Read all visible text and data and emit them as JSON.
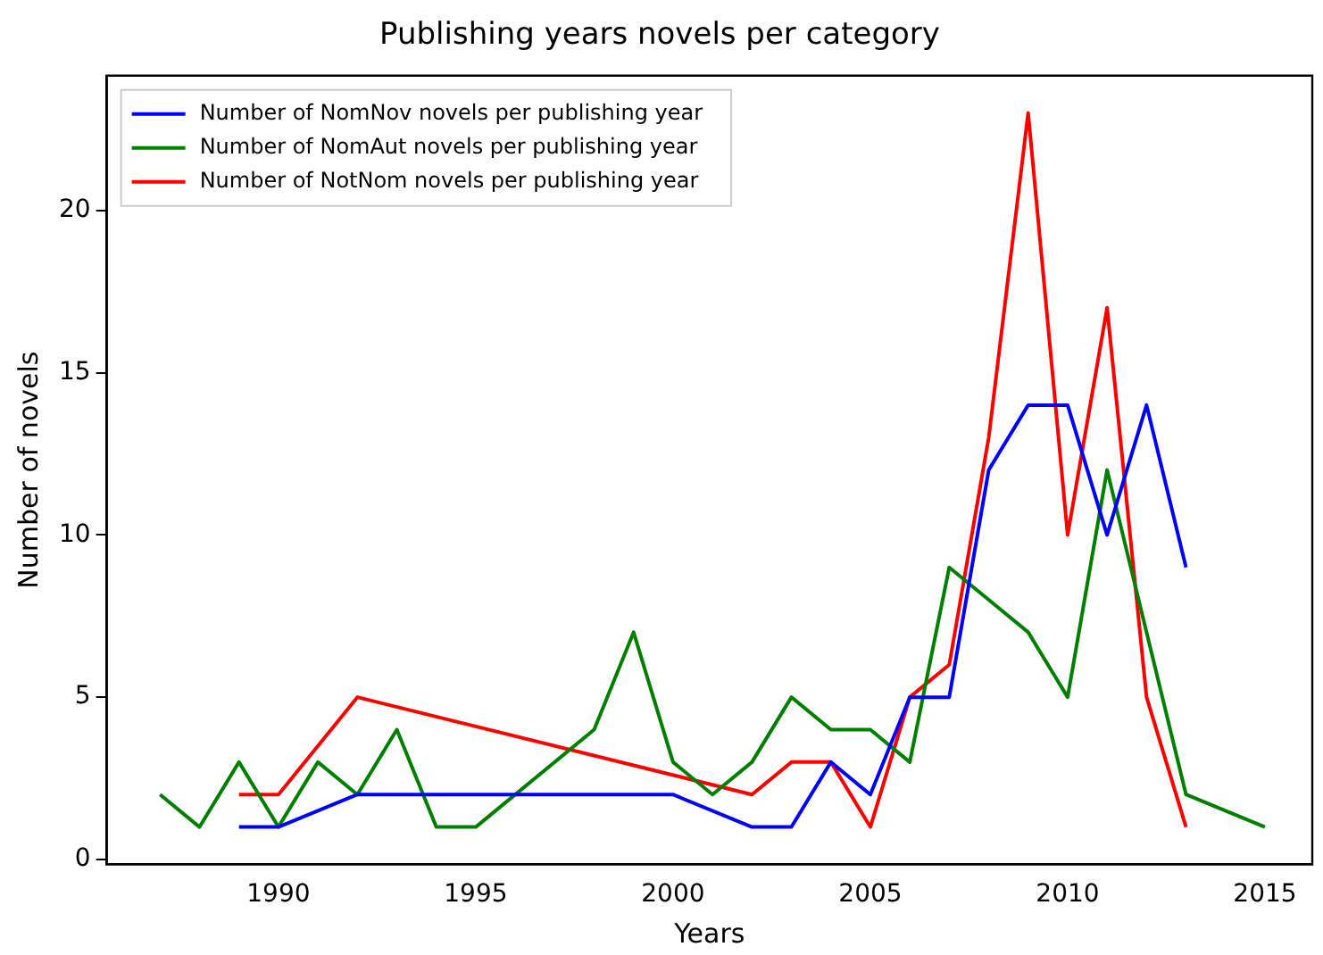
{
  "chart_data": {
    "type": "line",
    "title": "Publishing years novels per category",
    "xlabel": "Years",
    "ylabel": "Number of novels",
    "xlim": [
      1985.65,
      2016.2
    ],
    "xticks": [
      1990,
      1995,
      2000,
      2005,
      2010,
      2015
    ],
    "ylim": [
      -0.15,
      24.15
    ],
    "yticks": [
      0,
      5,
      10,
      15,
      20
    ],
    "grid": false,
    "legend": "top left",
    "marker": "none",
    "line_style": "solid",
    "series": [
      {
        "name": "Number of NomNov novels per publishing year",
        "color": "#0000ff",
        "x": [
          1989,
          1990,
          1992,
          2000,
          2002,
          2003,
          2004,
          2005,
          2006,
          2007,
          2008,
          2009,
          2010,
          2011,
          2012,
          2013
        ],
        "values": [
          1,
          1,
          2,
          2,
          1,
          1,
          3,
          2,
          5,
          5,
          12,
          14,
          14,
          10,
          14,
          9
        ]
      },
      {
        "name": "Number of NomAut novels per publishing year",
        "color": "#008000",
        "x": [
          1987,
          1988,
          1989,
          1990,
          1991,
          1992,
          1993,
          1994,
          1995,
          1998,
          1999,
          2000,
          2001,
          2002,
          2003,
          2004,
          2005,
          2006,
          2007,
          2008,
          2009,
          2010,
          2011,
          2013,
          2015
        ],
        "values": [
          2,
          1,
          3,
          1,
          3,
          2,
          4,
          1,
          1,
          4,
          7,
          3,
          2,
          3,
          5,
          4,
          4,
          3,
          9,
          8,
          7,
          5,
          12,
          2,
          1
        ]
      },
      {
        "name": "Number of NotNom novels per publishing year",
        "color": "#ff0000",
        "x": [
          1989,
          1990,
          1992,
          2002,
          2003,
          2004,
          2005,
          2006,
          2007,
          2008,
          2009,
          2010,
          2011,
          2012,
          2013
        ],
        "values": [
          2,
          2,
          5,
          2,
          3,
          3,
          1,
          5,
          6,
          13,
          23,
          10,
          17,
          5,
          1
        ]
      }
    ]
  }
}
